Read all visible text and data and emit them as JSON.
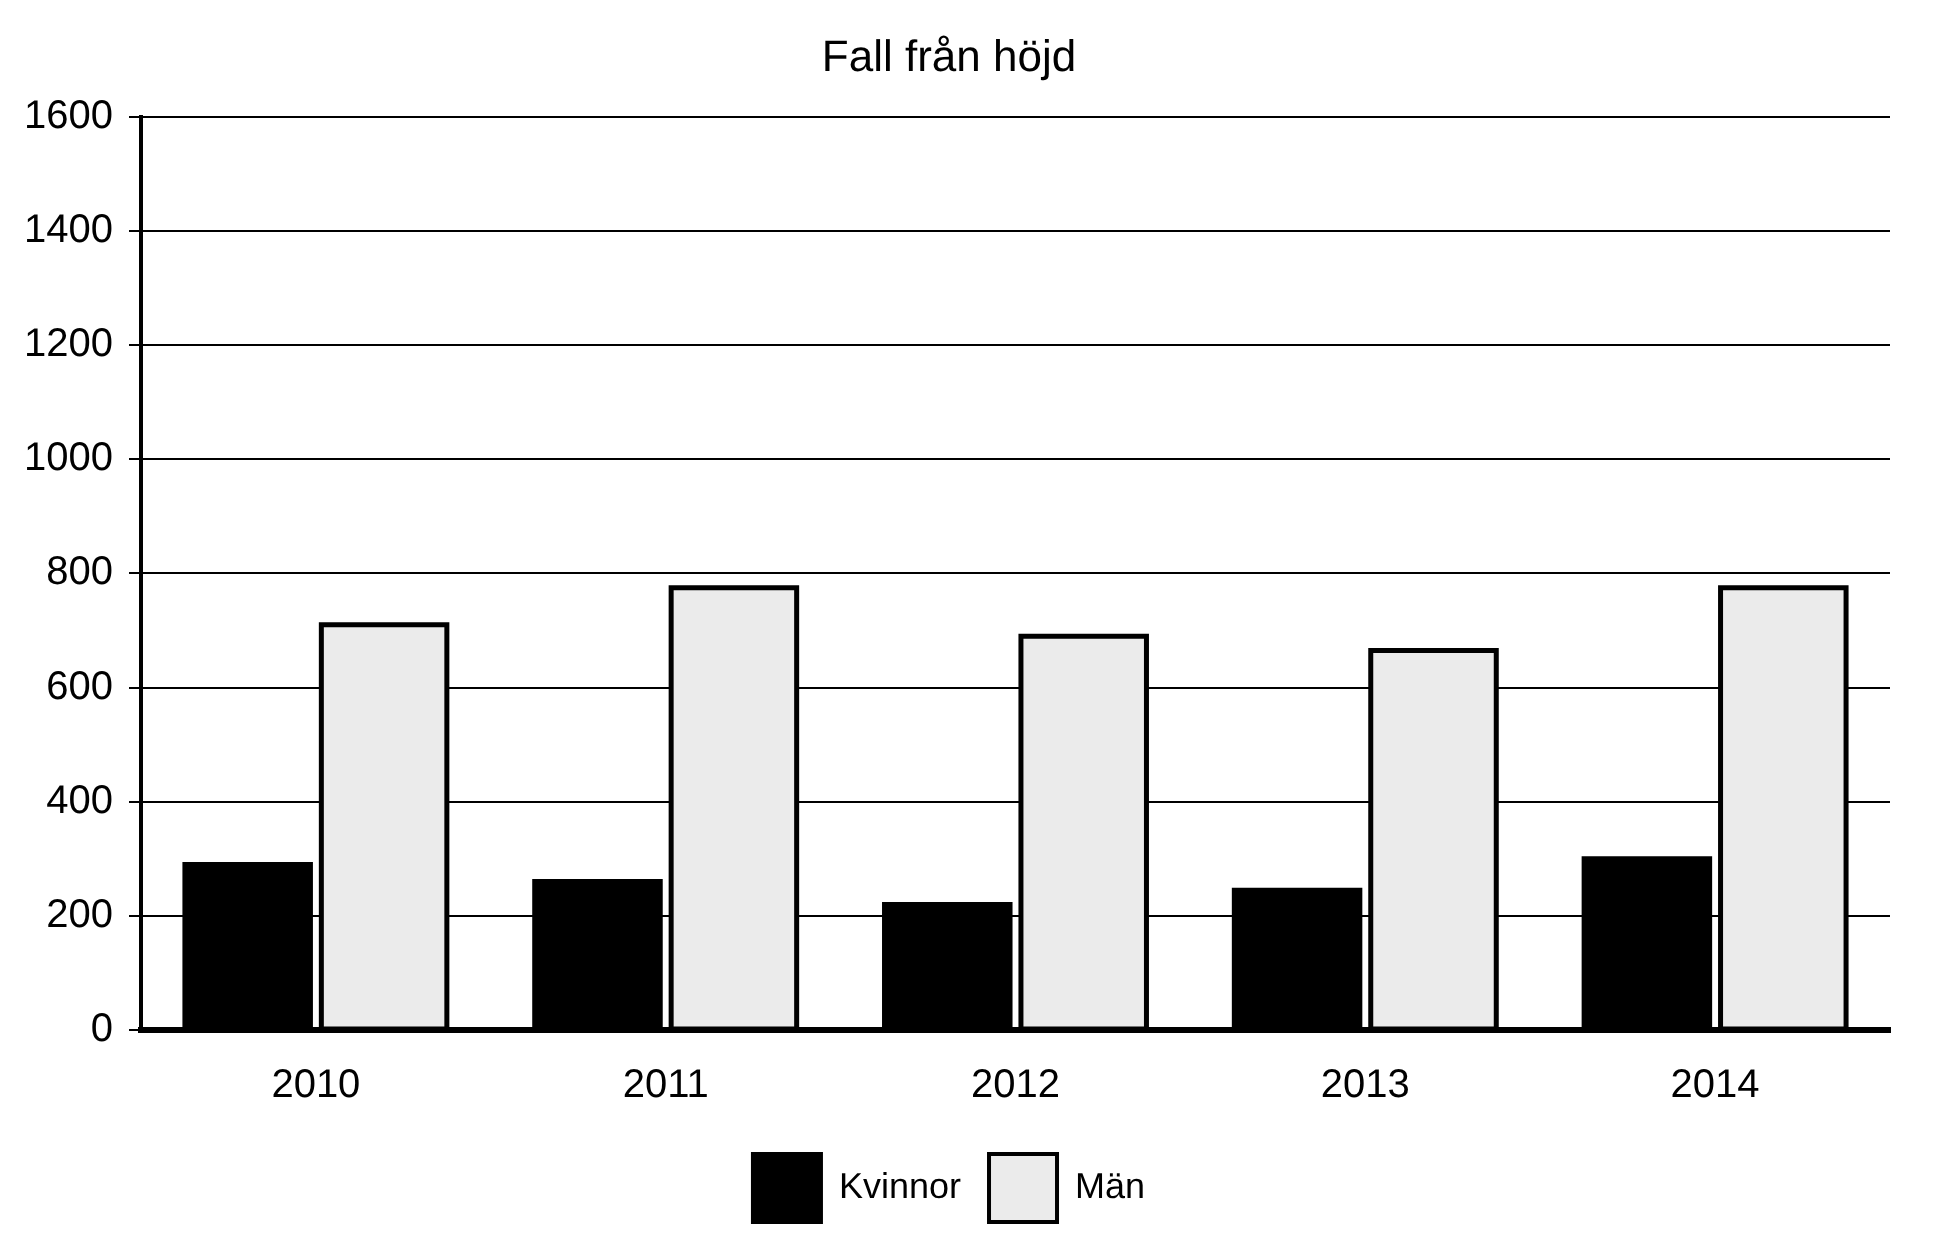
{
  "chart_data": {
    "type": "bar",
    "title": "Fall från höjd",
    "categories": [
      "2010",
      "2011",
      "2012",
      "2013",
      "2014"
    ],
    "series": [
      {
        "name": "Kvinnor",
        "color": "#000000",
        "values": [
          290,
          260,
          220,
          245,
          300
        ]
      },
      {
        "name": "Män",
        "color": "#ebebeb",
        "values": [
          710,
          775,
          690,
          665,
          775
        ]
      }
    ],
    "ylim": [
      0,
      1600
    ],
    "yticks": [
      0,
      200,
      400,
      600,
      800,
      1000,
      1200,
      1400,
      1600
    ],
    "grid": "y",
    "legend": "bottom"
  }
}
